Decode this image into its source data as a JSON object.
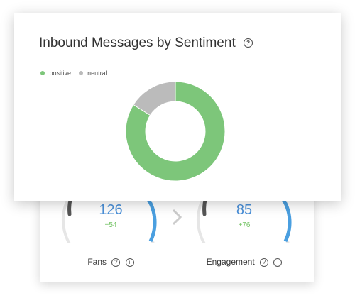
{
  "front_card": {
    "title": "Inbound Messages by Sentiment",
    "help_icon": "question-circle-icon"
  },
  "chart_data": {
    "type": "pie",
    "variant": "donut",
    "title": "Inbound Messages by Sentiment",
    "legend_position": "top-left",
    "series": [
      {
        "name": "positive",
        "value": 0.84,
        "color": "#7dc67a"
      },
      {
        "name": "neutral",
        "value": 0.16,
        "color": "#bbbbbb"
      }
    ]
  },
  "metrics": [
    {
      "value": "126",
      "delta": "+54",
      "label": "Fans",
      "gauge_color": "#4a9fe0"
    },
    {
      "value": "85",
      "delta": "+76",
      "label": "Engagement",
      "gauge_color": "#4a9fe0"
    }
  ],
  "icons": {
    "help": "?",
    "info": "i",
    "next": "chevron-right-icon"
  }
}
